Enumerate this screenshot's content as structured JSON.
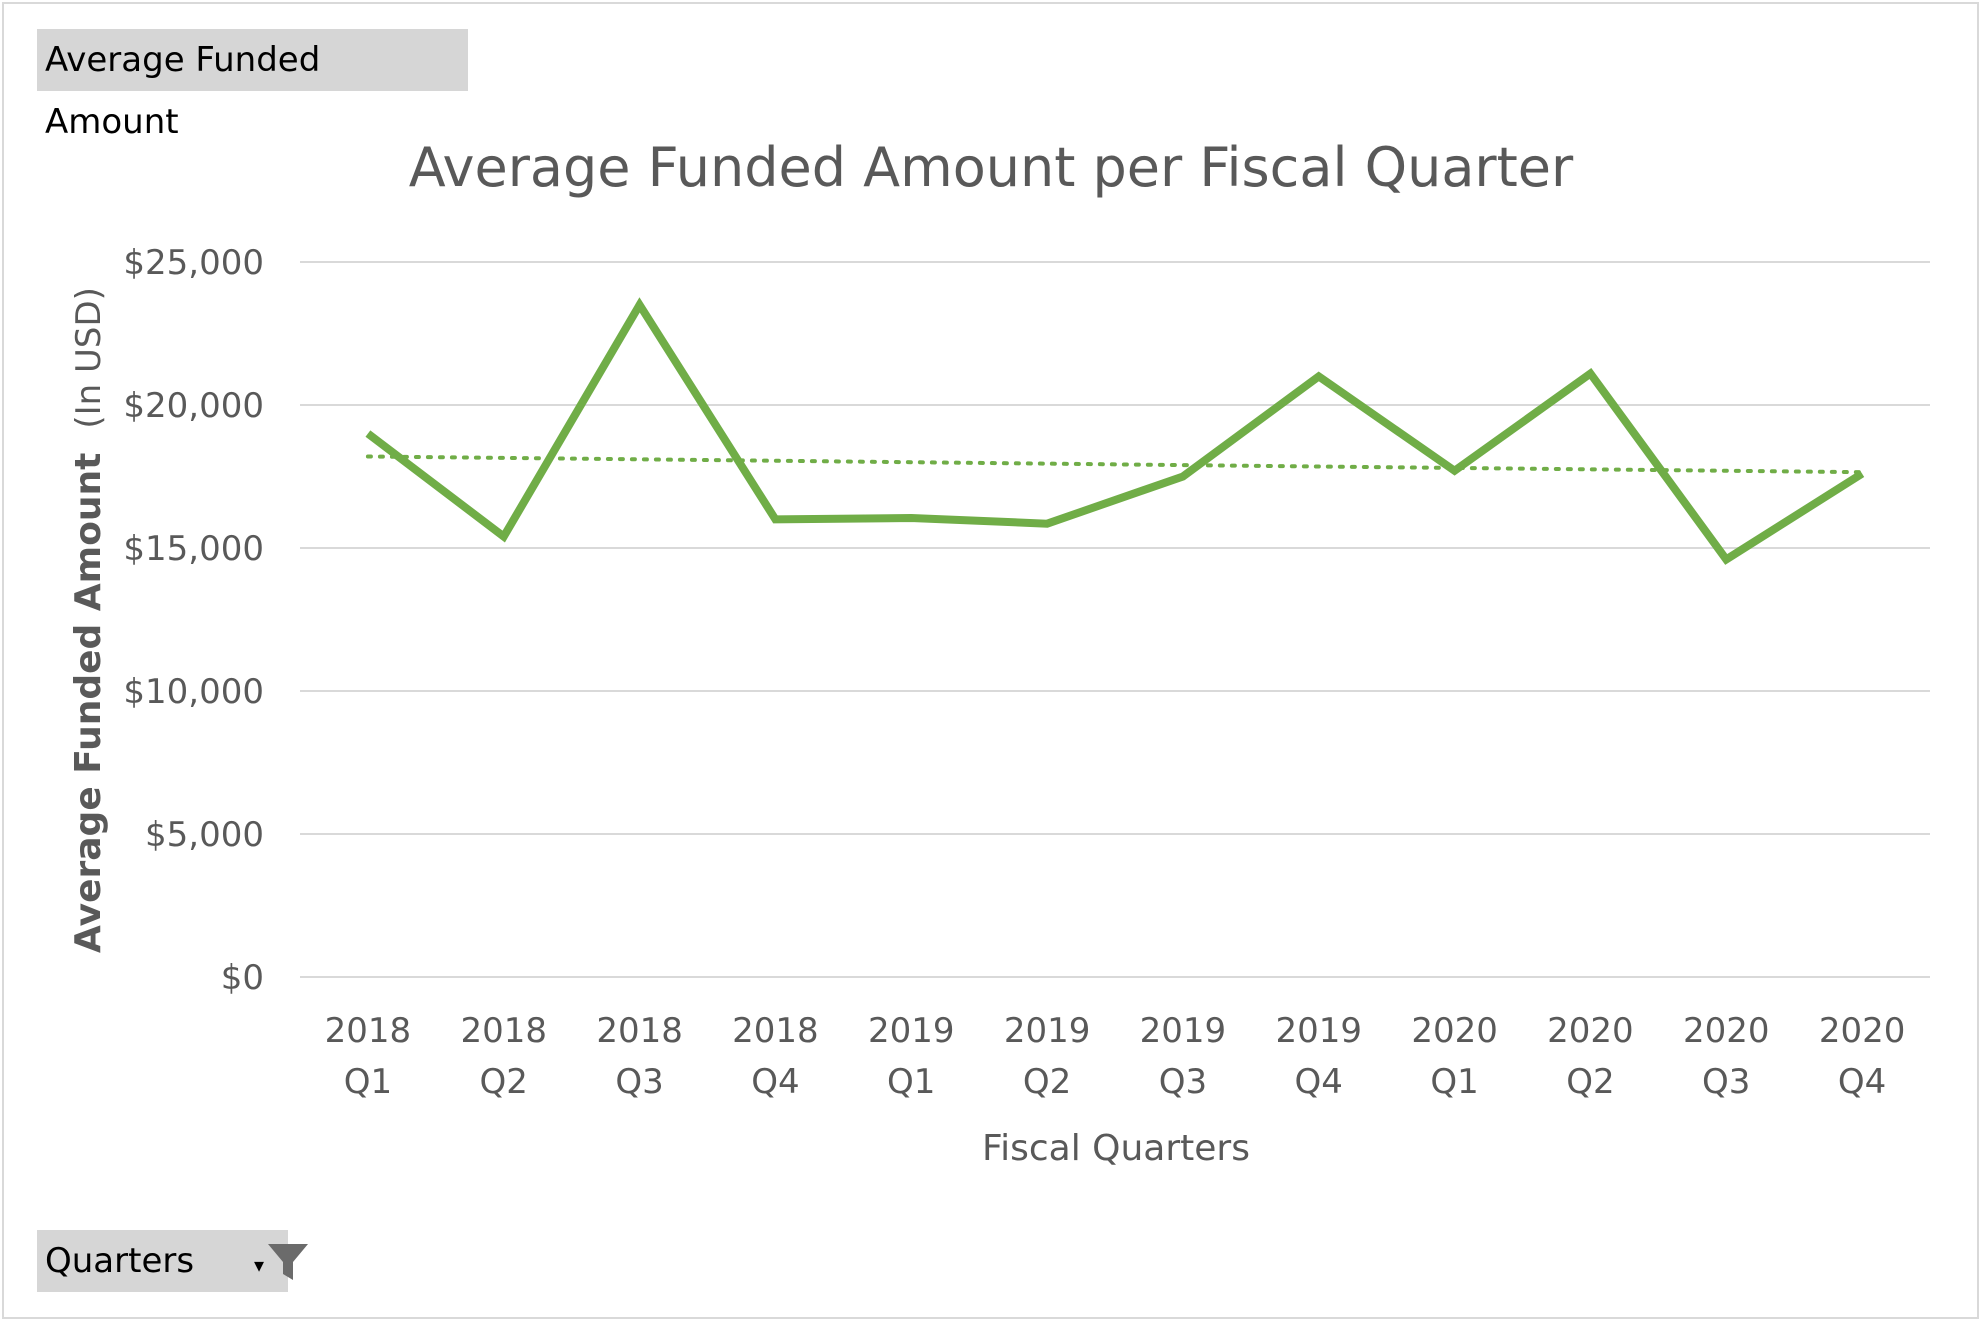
{
  "value_field_button": "Average  Funded  Amount",
  "axis_field_button": "Quarters",
  "icons": {
    "axis_field_dropdown": "dropdown-arrow-icon",
    "axis_field_filter": "filter-icon"
  },
  "colors": {
    "series": "#70ad47",
    "trendline": "#70ad47",
    "grid": "#d9d9d9",
    "text": "#595959"
  },
  "chart_data": {
    "type": "line",
    "title": "Average Funded Amount per Fiscal Quarter",
    "xlabel": "Fiscal Quarters",
    "ylabel_bold": "Average Funded Amount",
    "ylabel_suffix": "(In USD)",
    "ylim": [
      0,
      25000
    ],
    "yticks": [
      0,
      5000,
      10000,
      15000,
      20000,
      25000
    ],
    "ytick_labels": [
      "$0",
      "$5,000",
      "$10,000",
      "$15,000",
      "$20,000",
      "$25,000"
    ],
    "grid": true,
    "categories": [
      [
        "2018",
        "Q1"
      ],
      [
        "2018",
        "Q2"
      ],
      [
        "2018",
        "Q3"
      ],
      [
        "2018",
        "Q4"
      ],
      [
        "2019",
        "Q1"
      ],
      [
        "2019",
        "Q2"
      ],
      [
        "2019",
        "Q3"
      ],
      [
        "2019",
        "Q4"
      ],
      [
        "2020",
        "Q1"
      ],
      [
        "2020",
        "Q2"
      ],
      [
        "2020",
        "Q3"
      ],
      [
        "2020",
        "Q4"
      ]
    ],
    "series": [
      {
        "values": [
          19000,
          15400,
          23500,
          16000,
          16050,
          15850,
          17500,
          21000,
          17700,
          21100,
          14600,
          17600
        ]
      }
    ],
    "trendline": {
      "type": "linear",
      "style": "dotted",
      "start": 18200,
      "end": 17650
    }
  }
}
